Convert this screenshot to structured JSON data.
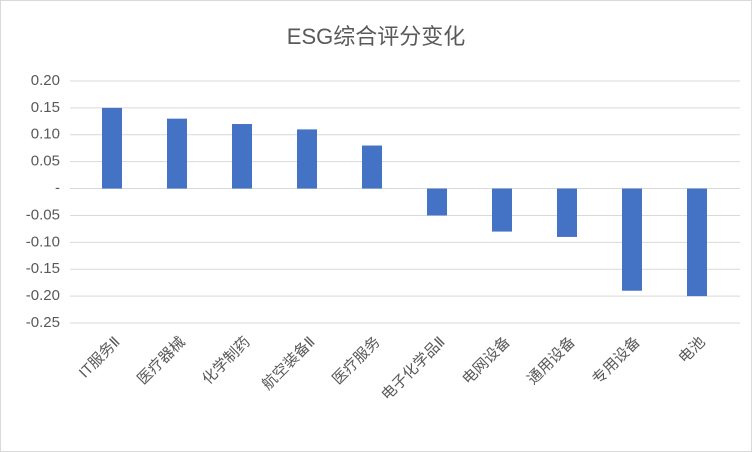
{
  "chart_data": {
    "type": "bar",
    "title": "ESG综合评分变化",
    "categories": [
      "IT服务Ⅱ",
      "医疗器械",
      "化学制药",
      "航空装备Ⅱ",
      "医疗服务",
      "电子化学品Ⅱ",
      "电网设备",
      "通用设备",
      "专用设备",
      "电池"
    ],
    "values": [
      0.15,
      0.13,
      0.12,
      0.11,
      0.08,
      -0.05,
      -0.08,
      -0.09,
      -0.19,
      -0.2
    ],
    "color": "#4472c4",
    "ylim": [
      -0.25,
      0.2
    ],
    "yticks": [
      {
        "value": 0.2,
        "label": "0.20"
      },
      {
        "value": 0.15,
        "label": "0.15"
      },
      {
        "value": 0.1,
        "label": "0.10"
      },
      {
        "value": 0.05,
        "label": "0.05"
      },
      {
        "value": 0,
        "label": "-"
      },
      {
        "value": -0.05,
        "label": "-0.05"
      },
      {
        "value": -0.1,
        "label": "-0.10"
      },
      {
        "value": -0.15,
        "label": "-0.15"
      },
      {
        "value": -0.2,
        "label": "-0.20"
      },
      {
        "value": -0.25,
        "label": "-0.25"
      }
    ],
    "grid": true
  }
}
